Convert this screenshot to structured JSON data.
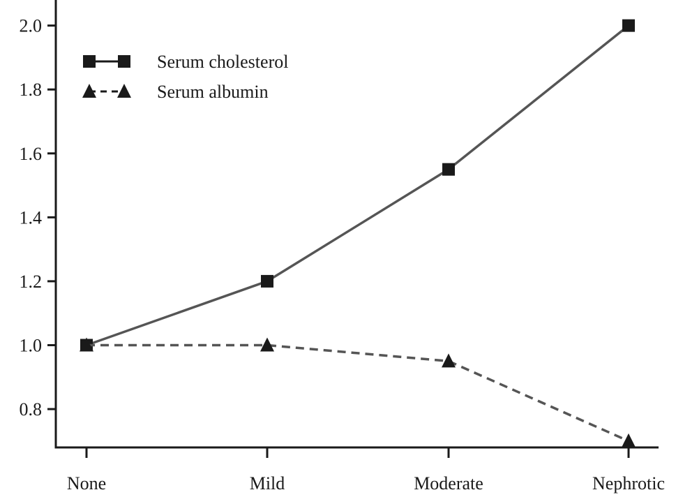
{
  "chart_data": {
    "type": "line",
    "title": "",
    "xlabel": "",
    "ylabel": "",
    "categories": [
      "None",
      "Mild",
      "Moderate",
      "Nephrotic"
    ],
    "yticks": [
      "0.8",
      "1.0",
      "1.2",
      "1.4",
      "1.6",
      "1.8",
      "2.0"
    ],
    "ylim": [
      0.68,
      2.08
    ],
    "grid": false,
    "legend_position": "top-left",
    "series": [
      {
        "name": "Serum cholesterol",
        "values": [
          1.0,
          1.2,
          1.55,
          2.0
        ],
        "marker": "square",
        "line_style": "solid",
        "color": "#555555",
        "marker_color": "#1a1a1a"
      },
      {
        "name": "Serum albumin",
        "values": [
          1.0,
          1.0,
          0.95,
          0.7
        ],
        "marker": "triangle",
        "line_style": "dashed",
        "color": "#555555",
        "marker_color": "#1a1a1a"
      }
    ]
  }
}
